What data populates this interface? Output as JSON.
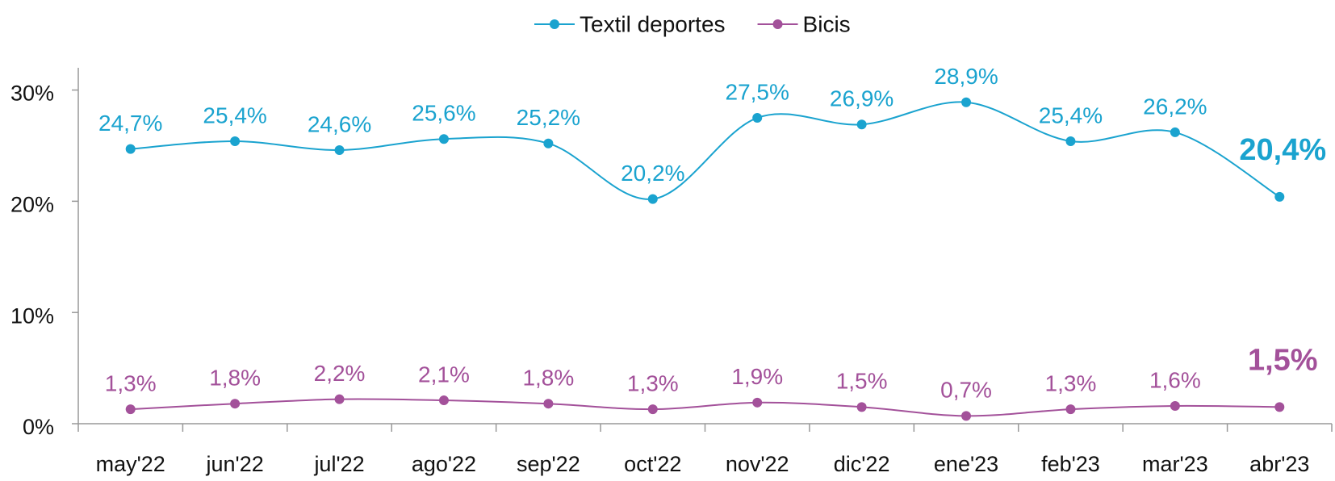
{
  "chart_data": {
    "type": "line",
    "categories": [
      "may'22",
      "jun'22",
      "jul'22",
      "ago'22",
      "sep'22",
      "oct'22",
      "nov'22",
      "dic'22",
      "ene'23",
      "feb'23",
      "mar'23",
      "abr'23"
    ],
    "series": [
      {
        "name": "Textil deportes",
        "color": "#1aa3cf",
        "values": [
          24.7,
          25.4,
          24.6,
          25.6,
          25.2,
          20.2,
          27.5,
          26.9,
          28.9,
          25.4,
          26.2,
          20.4
        ],
        "value_labels": [
          "24,7%",
          "25,4%",
          "24,6%",
          "25,6%",
          "25,2%",
          "20,2%",
          "27,5%",
          "26,9%",
          "28,9%",
          "25,4%",
          "26,2%",
          "20,4%"
        ]
      },
      {
        "name": "Bicis",
        "color": "#a3519a",
        "values": [
          1.3,
          1.8,
          2.2,
          2.1,
          1.8,
          1.3,
          1.9,
          1.5,
          0.7,
          1.3,
          1.6,
          1.5
        ],
        "value_labels": [
          "1,3%",
          "1,8%",
          "2,2%",
          "2,1%",
          "1,8%",
          "1,3%",
          "1,9%",
          "1,5%",
          "0,7%",
          "1,3%",
          "1,6%",
          "1,5%"
        ]
      }
    ],
    "ylim": [
      0,
      32
    ],
    "yticks": [
      {
        "value": 0,
        "label": "0%"
      },
      {
        "value": 10,
        "label": "10%"
      },
      {
        "value": 20,
        "label": "20%"
      },
      {
        "value": 30,
        "label": "30%"
      }
    ],
    "legend": "top",
    "grid": false
  }
}
